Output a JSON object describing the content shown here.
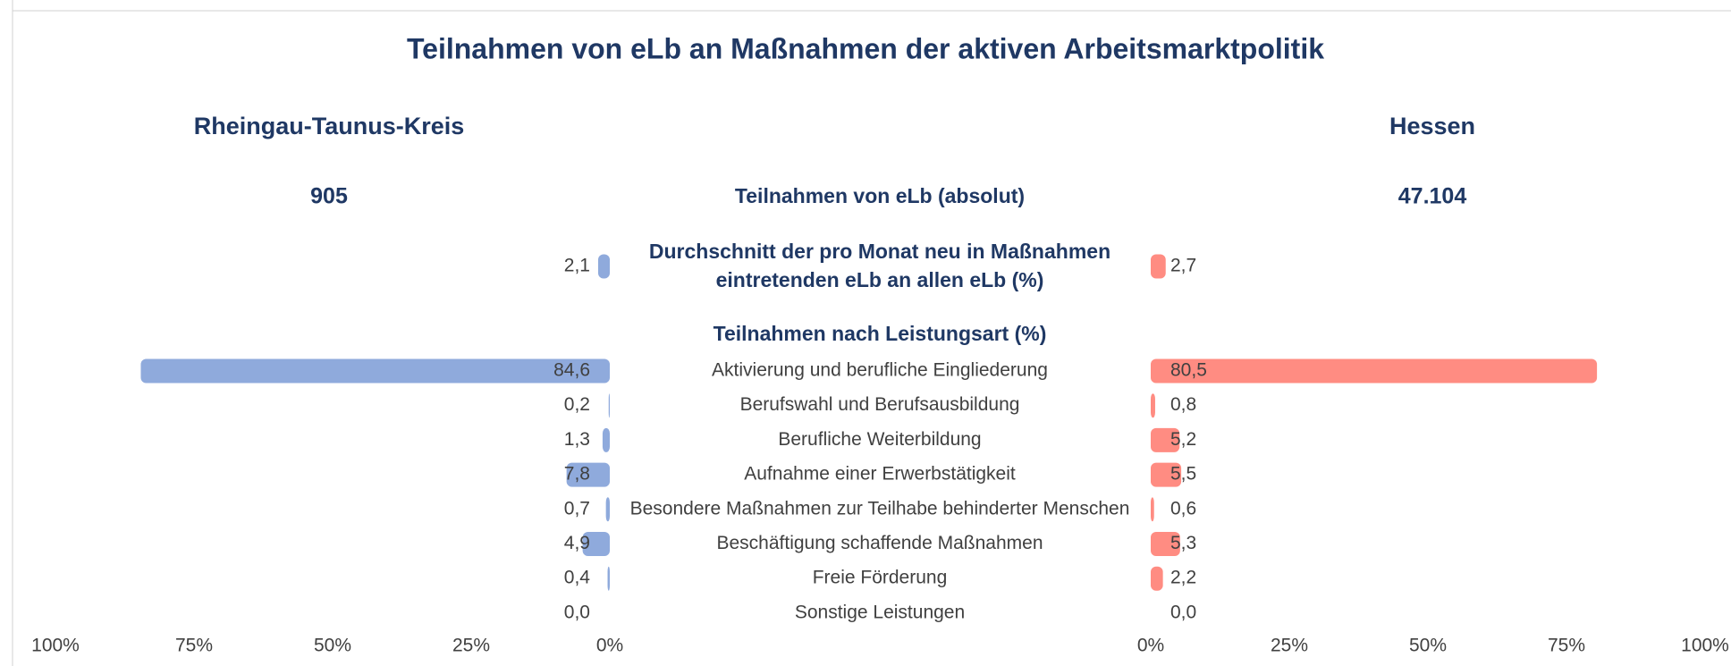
{
  "chart_data": {
    "type": "butterfly-bar",
    "title": "Teilnahmen von eLb an Maßnahmen der aktiven Arbeitsmarktpolitik",
    "total_label": "Teilnahmen von eLb (absolut)",
    "average_label": [
      "Durchschnitt der pro Monat neu in Maßnahmen",
      "eintretenden eLb an allen eLb (%)"
    ],
    "section_label": "Teilnahmen nach Leistungsart  (%)",
    "categories": [
      "Aktivierung und berufliche Eingliederung",
      "Berufswahl und Berufsausbildung",
      "Berufliche Weiterbildung",
      "Aufnahme einer Erwerbstätigkeit",
      "Besondere Maßnahmen zur Teilhabe behinderter Menschen",
      "Beschäftigung schaffende Maßnahmen",
      "Freie Förderung",
      "Sonstige Leistungen"
    ],
    "series": [
      {
        "name": "Rheingau-Taunus-Kreis",
        "color": "#8faadc",
        "total": 905,
        "average": 2.1,
        "average_value_label": "2,1",
        "values": [
          84.6,
          0.2,
          1.3,
          7.8,
          0.7,
          4.9,
          0.4,
          0.0
        ],
        "value_labels": [
          "84,6",
          "0,2",
          "1,3",
          "7,8",
          "0,7",
          "4,9",
          "0,4",
          "0,0"
        ]
      },
      {
        "name": "Hessen",
        "color": "#ff8c82",
        "total": {
          "value": 47104,
          "label": "47.104"
        },
        "average": 2.7,
        "average_value_label": "2,7",
        "values": [
          80.5,
          0.8,
          5.2,
          5.5,
          0.6,
          5.3,
          2.2,
          0.0
        ],
        "value_labels": [
          "80,5",
          "0,8",
          "5,2",
          "5,5",
          "0,6",
          "5,3",
          "2,2",
          "0,0"
        ]
      }
    ],
    "xlim": [
      0,
      100
    ],
    "xticks": [
      {
        "value": 0,
        "label": "0%"
      },
      {
        "value": 25,
        "label": "25%"
      },
      {
        "value": 50,
        "label": "50%"
      },
      {
        "value": 75,
        "label": "75%"
      },
      {
        "value": 100,
        "label": "100%"
      }
    ]
  }
}
